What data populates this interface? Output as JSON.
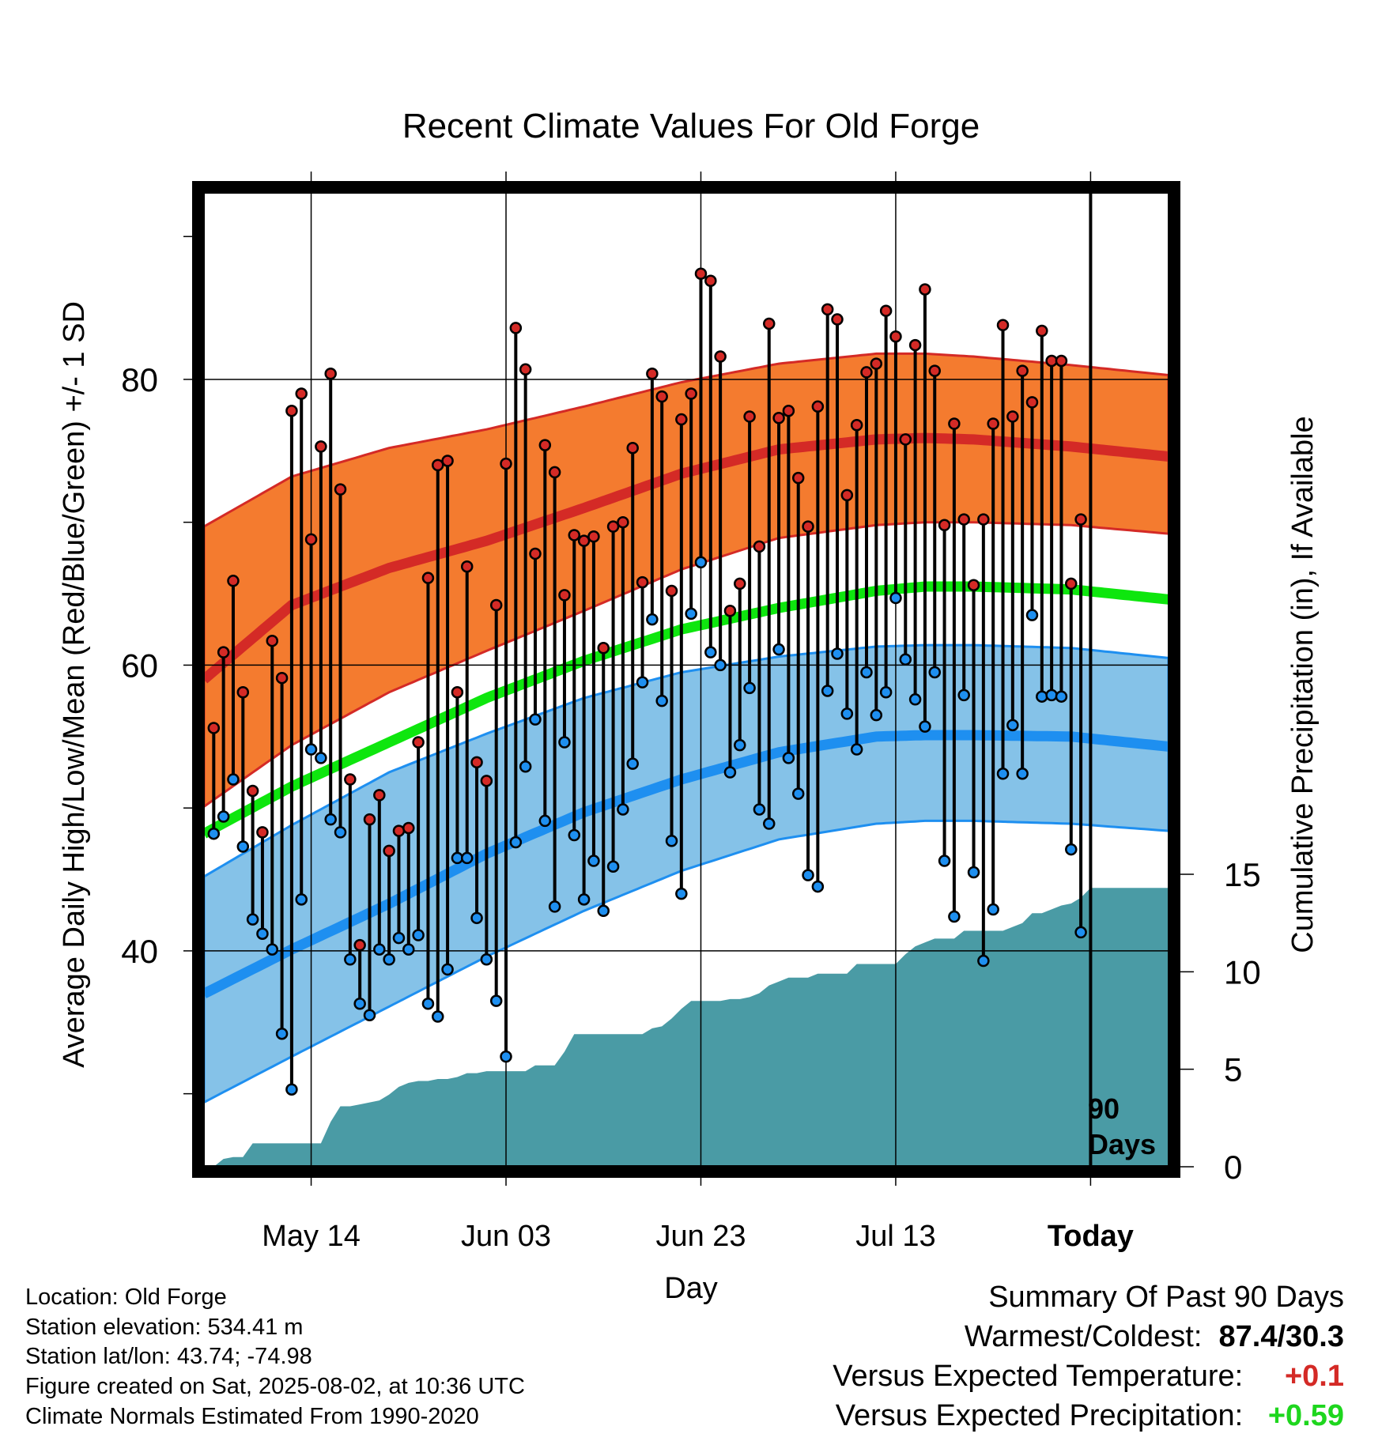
{
  "chart_data": {
    "type": "line",
    "title": "Recent Climate Values For Old Forge",
    "xlabel": "Day",
    "ylabel": "Average Daily High/Low/Mean (Red/Blue/Green) +/- 1 SD",
    "y2label": "Cumulative Precipitation (in), If Available",
    "ylim": [
      25,
      93
    ],
    "y2lim": [
      0,
      15
    ],
    "x_range": [
      1,
      100
    ],
    "x_ticks": [
      {
        "day": 12,
        "label": "May 14"
      },
      {
        "day": 32,
        "label": "Jun 03"
      },
      {
        "day": 52,
        "label": "Jun 23"
      },
      {
        "day": 72,
        "label": "Jul 13"
      },
      {
        "day": 92,
        "label": "Today"
      }
    ],
    "y_ticks": [
      40,
      60,
      80
    ],
    "y2_ticks": [
      0,
      5,
      10,
      15
    ],
    "grid": true,
    "today_day": 92,
    "today_annotation": [
      "90",
      "Days"
    ],
    "colors": {
      "high_band": "#f47b2f",
      "high_line": "#d42a26",
      "low_band": "#85c2e8",
      "low_line": "#1e8ff0",
      "mean_line": "#0ee60e",
      "precip_fill": "#4a9ba5",
      "high_point": "#d42a26",
      "low_point": "#1e8ff0"
    },
    "normals": {
      "days": [
        1,
        10,
        20,
        30,
        40,
        50,
        60,
        70,
        75,
        80,
        90,
        100
      ],
      "high_mean": [
        59,
        64.2,
        66.8,
        68.7,
        71,
        73.4,
        75.1,
        75.8,
        75.9,
        75.8,
        75.3,
        74.6
      ],
      "high_upper": [
        69.7,
        73.2,
        75.2,
        76.5,
        78.1,
        79.8,
        81.1,
        81.8,
        81.8,
        81.6,
        81.0,
        80.3
      ],
      "high_lower": [
        50.1,
        54.4,
        58.1,
        61.0,
        63.8,
        66.7,
        68.9,
        69.8,
        70.0,
        70.0,
        69.8,
        69.2
      ],
      "mean": [
        48.2,
        51.5,
        54.6,
        57.7,
        60.3,
        62.5,
        64.0,
        65.2,
        65.5,
        65.5,
        65.3,
        64.6
      ],
      "low_mean": [
        37.0,
        40.1,
        43.3,
        46.8,
        49.7,
        52.0,
        53.9,
        55.0,
        55.1,
        55.1,
        55.0,
        54.3
      ],
      "low_upper": [
        45.2,
        48.8,
        52.5,
        55.2,
        57.7,
        59.5,
        60.6,
        61.3,
        61.4,
        61.4,
        61.2,
        60.5
      ],
      "low_lower": [
        29.4,
        32.6,
        36.1,
        39.6,
        42.8,
        45.6,
        47.8,
        48.9,
        49.1,
        49.1,
        48.9,
        48.4
      ]
    },
    "series": [
      {
        "name": "High",
        "values": [
          55.6,
          60.9,
          65.9,
          58.1,
          51.2,
          48.3,
          61.7,
          59.1,
          77.8,
          79.0,
          68.8,
          75.3,
          80.4,
          72.3,
          52.0,
          40.4,
          49.2,
          50.9,
          47.0,
          48.4,
          48.6,
          54.6,
          66.1,
          74.0,
          74.3,
          58.1,
          66.9,
          53.2,
          51.9,
          64.2,
          74.1,
          83.6,
          80.7,
          67.8,
          75.4,
          73.5,
          64.9,
          69.1,
          68.7,
          69.0,
          61.2,
          69.7,
          70.0,
          75.2,
          65.8,
          80.4,
          78.8,
          65.2,
          77.2,
          79.0,
          87.4,
          86.9,
          81.6,
          63.8,
          65.7,
          77.4,
          68.3,
          83.9,
          77.3,
          77.8,
          73.1,
          69.7,
          78.1,
          84.9,
          84.2,
          71.9,
          76.8,
          80.5,
          81.1,
          84.8,
          83.0,
          75.8,
          82.4,
          86.3,
          80.6,
          69.8,
          76.9,
          70.2,
          65.6,
          70.2,
          76.9,
          83.8,
          77.4,
          80.6,
          78.4,
          83.4,
          81.3,
          81.3,
          65.7,
          70.2
        ]
      },
      {
        "name": "Low",
        "values": [
          48.2,
          49.4,
          52.0,
          47.3,
          42.2,
          41.2,
          40.1,
          34.2,
          30.3,
          43.6,
          54.1,
          53.5,
          49.2,
          48.3,
          39.4,
          36.3,
          35.5,
          40.1,
          39.4,
          40.9,
          40.1,
          41.1,
          36.3,
          35.4,
          38.7,
          46.5,
          46.5,
          42.3,
          39.4,
          36.5,
          32.6,
          47.6,
          52.9,
          56.2,
          49.1,
          43.1,
          54.6,
          48.1,
          43.6,
          46.3,
          42.8,
          45.9,
          49.9,
          53.1,
          58.8,
          63.2,
          57.5,
          47.7,
          44.0,
          63.6,
          67.2,
          60.9,
          60.0,
          52.5,
          54.4,
          58.4,
          49.9,
          48.9,
          61.1,
          53.5,
          51.0,
          45.3,
          44.5,
          58.2,
          60.8,
          56.6,
          54.1,
          59.5,
          56.5,
          58.1,
          64.7,
          60.4,
          57.6,
          55.7,
          59.5,
          46.3,
          42.4,
          57.9,
          45.5,
          39.3,
          42.9,
          52.4,
          55.8,
          52.4,
          63.5,
          57.8,
          57.9,
          57.8,
          47.1,
          41.3
        ]
      }
    ],
    "precipitation": {
      "days": [
        1,
        2,
        3,
        4,
        5,
        6,
        7,
        8,
        9,
        10,
        11,
        12,
        13,
        14,
        15,
        16,
        17,
        18,
        19,
        20,
        21,
        22,
        23,
        24,
        25,
        26,
        27,
        28,
        29,
        30,
        31,
        32,
        33,
        34,
        35,
        36,
        37,
        38,
        39,
        40,
        41,
        42,
        43,
        44,
        45,
        46,
        47,
        48,
        49,
        50,
        51,
        52,
        53,
        54,
        55,
        56,
        57,
        58,
        59,
        60,
        61,
        62,
        63,
        64,
        65,
        66,
        67,
        68,
        69,
        70,
        71,
        72,
        73,
        74,
        75,
        76,
        77,
        78,
        79,
        80,
        81,
        82,
        83,
        84,
        85,
        86,
        87,
        88,
        89,
        90,
        91,
        92,
        100
      ],
      "values": [
        0.0,
        0.0,
        0.4,
        0.5,
        0.5,
        1.2,
        1.2,
        1.2,
        1.2,
        1.2,
        1.2,
        1.2,
        1.2,
        2.3,
        3.1,
        3.1,
        3.2,
        3.3,
        3.4,
        3.7,
        4.1,
        4.3,
        4.4,
        4.4,
        4.5,
        4.5,
        4.6,
        4.8,
        4.8,
        4.9,
        4.9,
        4.9,
        4.9,
        4.9,
        5.2,
        5.2,
        5.2,
        5.9,
        6.8,
        6.8,
        6.8,
        6.8,
        6.8,
        6.8,
        6.8,
        6.8,
        7.1,
        7.2,
        7.6,
        8.1,
        8.5,
        8.5,
        8.5,
        8.5,
        8.6,
        8.6,
        8.7,
        8.9,
        9.3,
        9.5,
        9.7,
        9.7,
        9.7,
        9.9,
        9.9,
        9.9,
        9.9,
        10.4,
        10.4,
        10.4,
        10.4,
        10.4,
        10.9,
        11.3,
        11.5,
        11.7,
        11.7,
        11.7,
        12.1,
        12.1,
        12.1,
        12.1,
        12.1,
        12.3,
        12.5,
        13.0,
        13.0,
        13.2,
        13.4,
        13.5,
        13.8,
        14.3,
        14.3
      ]
    }
  },
  "info": {
    "location": "Location: Old Forge",
    "elevation": "Station elevation: 534.41 m",
    "latlon": "Station lat/lon: 43.74; -74.98",
    "created": "Figure created on Sat, 2025-08-02, at 10:36 UTC",
    "normals": "Climate Normals Estimated From 1990-2020"
  },
  "summary": {
    "heading": "Summary Of Past 90 Days",
    "warmest_coldest_label": "Warmest/Coldest:",
    "warmest_coldest_value": "87.4/30.3",
    "temp_label": "Versus Expected Temperature:",
    "temp_value": "+0.1",
    "temp_value_color": "#d42a26",
    "precip_label": "Versus Expected Precipitation:",
    "precip_value": "+0.59",
    "precip_value_color": "#1ed61e"
  }
}
